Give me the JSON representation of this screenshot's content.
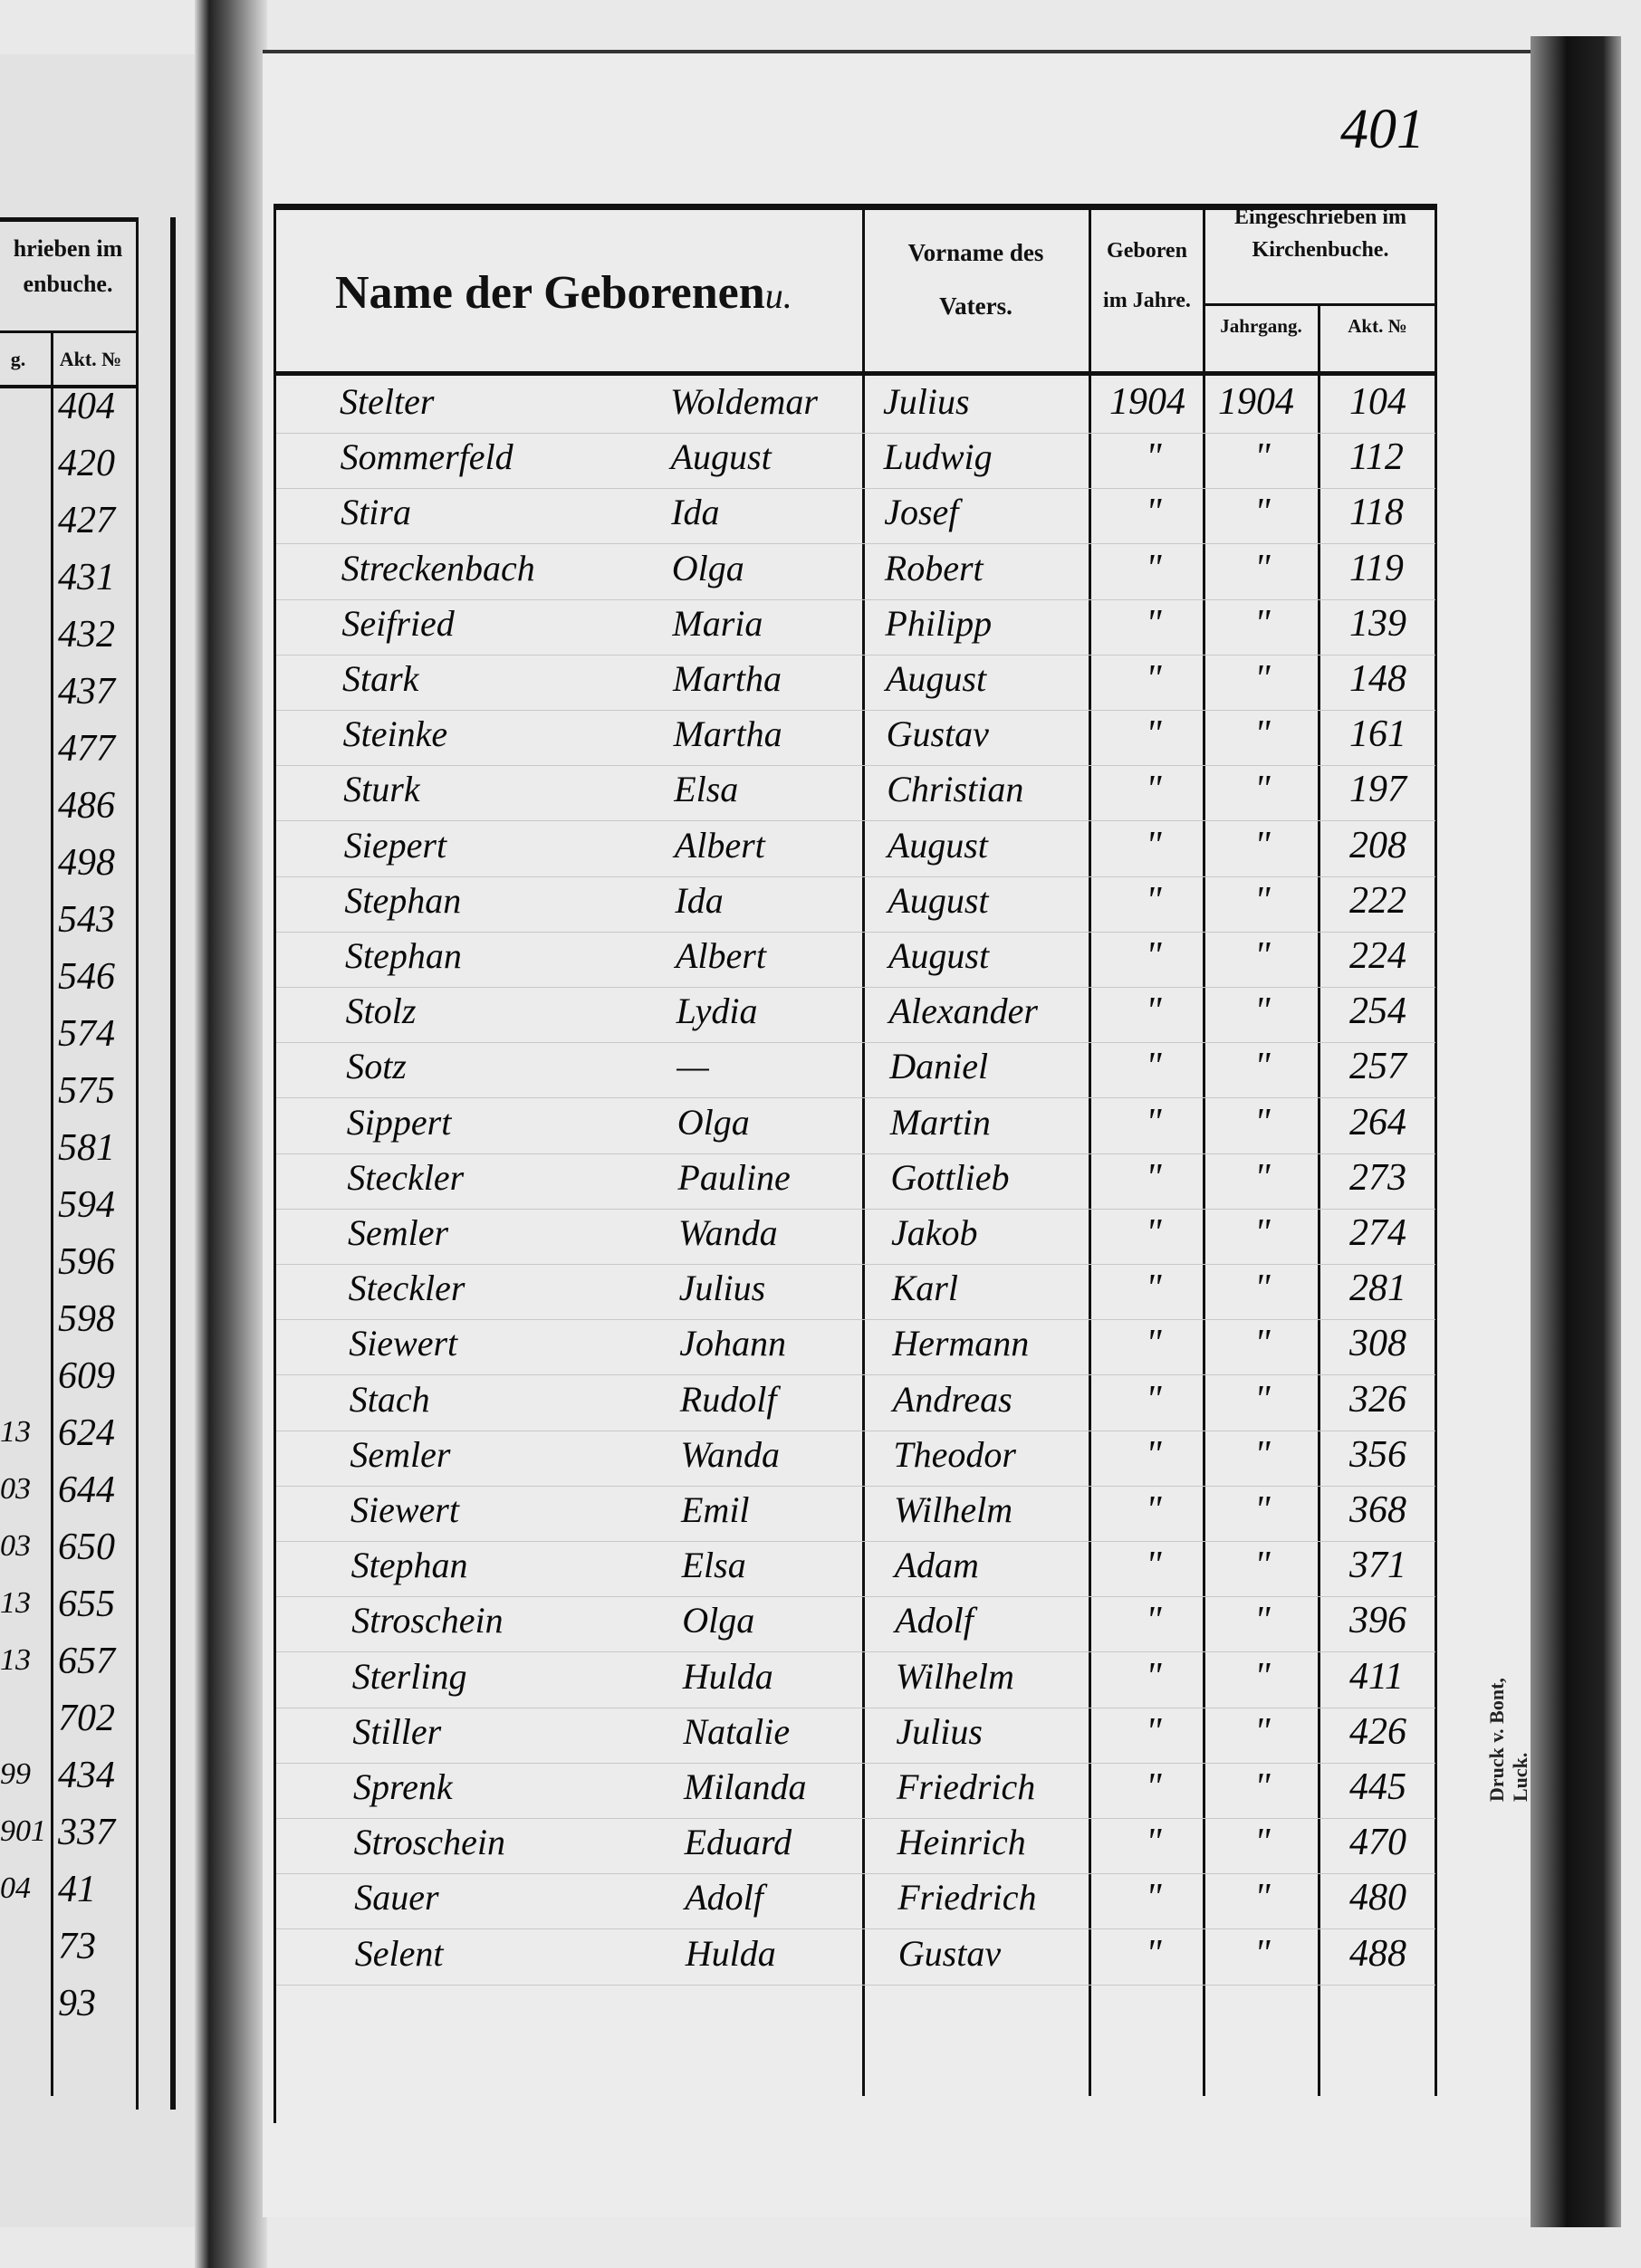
{
  "page_number": "401",
  "printer_note": "Druck v. Bont, Luck.",
  "header": {
    "name_col": "Name der Geborenen",
    "name_col_suffix": "u.",
    "father_col_line1": "Vorname des",
    "father_col_line2": "Vaters.",
    "born_col_line1": "Geboren",
    "born_col_line2": "im Jahre.",
    "registered_line1": "Eingeschrieben im",
    "registered_line2": "Kirchenbuche.",
    "year_col": "Jahrgang.",
    "act_col": "Akt. №"
  },
  "left_page": {
    "header_line1": "hrieben im",
    "header_line2": "enbuche.",
    "year_col": "g.",
    "act_col": "Akt. №",
    "year_fragments": [
      "",
      "",
      "",
      "",
      "",
      "",
      "",
      "",
      "",
      "",
      "",
      "",
      "",
      "",
      "",
      "",
      "",
      "",
      "13",
      "03",
      "03",
      "13",
      "13",
      "",
      "99",
      "901",
      "04",
      "",
      ""
    ],
    "act_numbers": [
      "404",
      "420",
      "427",
      "431",
      "432",
      "437",
      "477",
      "486",
      "498",
      "543",
      "546",
      "574",
      "575",
      "581",
      "594",
      "596",
      "598",
      "609",
      "624",
      "644",
      "650",
      "655",
      "657",
      "702",
      "434",
      "337",
      "41",
      "73",
      "93"
    ]
  },
  "rows": [
    {
      "surname": "Stelter",
      "first_name": "Woldemar",
      "father": "Julius",
      "born": "1904",
      "year": "1904",
      "act": "104"
    },
    {
      "surname": "Sommerfeld",
      "first_name": "August",
      "father": "Ludwig",
      "born": "\"",
      "year": "\"",
      "act": "112"
    },
    {
      "surname": "Stira",
      "first_name": "Ida",
      "father": "Josef",
      "born": "\"",
      "year": "\"",
      "act": "118"
    },
    {
      "surname": "Streckenbach",
      "first_name": "Olga",
      "father": "Robert",
      "born": "\"",
      "year": "\"",
      "act": "119"
    },
    {
      "surname": "Seifried",
      "first_name": "Maria",
      "father": "Philipp",
      "born": "\"",
      "year": "\"",
      "act": "139"
    },
    {
      "surname": "Stark",
      "first_name": "Martha",
      "father": "August",
      "born": "\"",
      "year": "\"",
      "act": "148"
    },
    {
      "surname": "Steinke",
      "first_name": "Martha",
      "father": "Gustav",
      "born": "\"",
      "year": "\"",
      "act": "161"
    },
    {
      "surname": "Sturk",
      "first_name": "Elsa",
      "father": "Christian",
      "born": "\"",
      "year": "\"",
      "act": "197"
    },
    {
      "surname": "Siepert",
      "first_name": "Albert",
      "father": "August",
      "born": "\"",
      "year": "\"",
      "act": "208"
    },
    {
      "surname": "Stephan",
      "first_name": "Ida",
      "father": "August",
      "born": "\"",
      "year": "\"",
      "act": "222"
    },
    {
      "surname": "Stephan",
      "first_name": "Albert",
      "father": "August",
      "born": "\"",
      "year": "\"",
      "act": "224"
    },
    {
      "surname": "Stolz",
      "first_name": "Lydia",
      "father": "Alexander",
      "born": "\"",
      "year": "\"",
      "act": "254"
    },
    {
      "surname": "Sotz",
      "first_name": "—",
      "father": "Daniel",
      "born": "\"",
      "year": "\"",
      "act": "257"
    },
    {
      "surname": "Sippert",
      "first_name": "Olga",
      "father": "Martin",
      "born": "\"",
      "year": "\"",
      "act": "264"
    },
    {
      "surname": "Steckler",
      "first_name": "Pauline",
      "father": "Gottlieb",
      "born": "\"",
      "year": "\"",
      "act": "273"
    },
    {
      "surname": "Semler",
      "first_name": "Wanda",
      "father": "Jakob",
      "born": "\"",
      "year": "\"",
      "act": "274"
    },
    {
      "surname": "Steckler",
      "first_name": "Julius",
      "father": "Karl",
      "born": "\"",
      "year": "\"",
      "act": "281"
    },
    {
      "surname": "Siewert",
      "first_name": "Johann",
      "father": "Hermann",
      "born": "\"",
      "year": "\"",
      "act": "308"
    },
    {
      "surname": "Stach",
      "first_name": "Rudolf",
      "father": "Andreas",
      "born": "\"",
      "year": "\"",
      "act": "326"
    },
    {
      "surname": "Semler",
      "first_name": "Wanda",
      "father": "Theodor",
      "born": "\"",
      "year": "\"",
      "act": "356"
    },
    {
      "surname": "Siewert",
      "first_name": "Emil",
      "father": "Wilhelm",
      "born": "\"",
      "year": "\"",
      "act": "368"
    },
    {
      "surname": "Stephan",
      "first_name": "Elsa",
      "father": "Adam",
      "born": "\"",
      "year": "\"",
      "act": "371"
    },
    {
      "surname": "Stroschein",
      "first_name": "Olga",
      "father": "Adolf",
      "born": "\"",
      "year": "\"",
      "act": "396"
    },
    {
      "surname": "Sterling",
      "first_name": "Hulda",
      "father": "Wilhelm",
      "born": "\"",
      "year": "\"",
      "act": "411"
    },
    {
      "surname": "Stiller",
      "first_name": "Natalie",
      "father": "Julius",
      "born": "\"",
      "year": "\"",
      "act": "426"
    },
    {
      "surname": "Sprenk",
      "first_name": "Milanda",
      "father": "Friedrich",
      "born": "\"",
      "year": "\"",
      "act": "445"
    },
    {
      "surname": "Stroschein",
      "first_name": "Eduard",
      "father": "Heinrich",
      "born": "\"",
      "year": "\"",
      "act": "470"
    },
    {
      "surname": "Sauer",
      "first_name": "Adolf",
      "father": "Friedrich",
      "born": "\"",
      "year": "\"",
      "act": "480"
    },
    {
      "surname": "Selent",
      "first_name": "Hulda",
      "father": "Gustav",
      "born": "\"",
      "year": "\"",
      "act": "488"
    }
  ]
}
